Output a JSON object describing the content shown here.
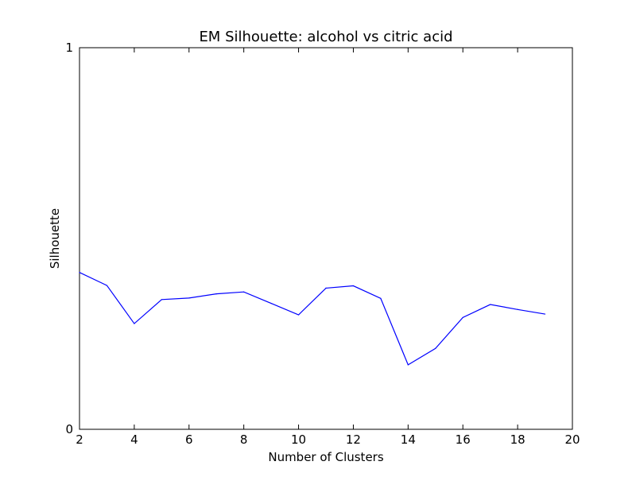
{
  "chart_data": {
    "type": "line",
    "title": "EM Silhouette: alcohol vs citric acid",
    "xlabel": "Number of Clusters",
    "ylabel": "Silhouette",
    "xlim": [
      2,
      20
    ],
    "ylim": [
      0,
      1
    ],
    "x_ticks": [
      "2",
      "4",
      "6",
      "8",
      "10",
      "12",
      "14",
      "16",
      "18",
      "20"
    ],
    "y_ticks": [
      "0",
      "1"
    ],
    "grid": false,
    "line_color": "#0000ff",
    "series": [
      {
        "x": [
          2,
          3,
          4,
          5,
          6,
          7,
          8,
          9,
          10,
          11,
          12,
          13,
          14,
          15,
          16,
          17,
          18,
          19
        ],
        "values": [
          0.411,
          0.377,
          0.277,
          0.34,
          0.344,
          0.355,
          0.36,
          0.33,
          0.3,
          0.37,
          0.376,
          0.343,
          0.169,
          0.212,
          0.293,
          0.327,
          0.314,
          0.302
        ]
      }
    ]
  }
}
